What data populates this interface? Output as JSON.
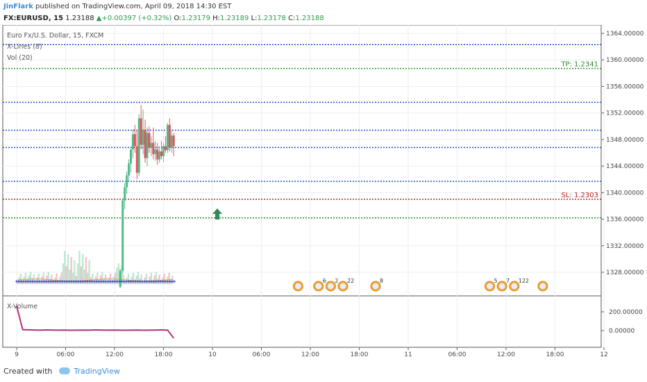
{
  "header": {
    "author": "JinFlark",
    "published": "published on TradingView.com, April 09, 2018 14:30 EST",
    "symbol": "FX:EURUSD, 15",
    "last": "1.23188",
    "change": "+0.00397 (+0.32%)",
    "o_label": "O:",
    "o_value": "1.23179",
    "h_label": "H:",
    "h_value": "1.23189",
    "l_label": "L:",
    "l_value": "1.23178",
    "c_label": "C:",
    "c_value": "1.23188"
  },
  "legend": {
    "title": "Euro Fx/U.S. Dollar, 15, FXCM",
    "indicator1": "X-Lines (8)",
    "indicator2": "Vol (20)",
    "lower_pane": "X-Volume"
  },
  "footer": {
    "created_with": "Created with",
    "brand": "TradingView"
  },
  "colors": {
    "up": "#53b987",
    "down": "#eb4d5c",
    "blue_line": "#1e4fd6",
    "green_line": "#2e8b2e",
    "red_line": "#b22222",
    "xvolume": "#b0307a",
    "tp": "#2e8b2e",
    "sl": "#b22222"
  },
  "chart_data": {
    "type": "candlestick",
    "price_axis": {
      "ticks": [
        "1364.00000",
        "1360.00000",
        "1356.00000",
        "1352.00000",
        "1348.00000",
        "1344.00000",
        "1340.00000",
        "1336.00000",
        "1332.00000",
        "1328.00000"
      ],
      "range": [
        1325.5,
        1364.8
      ]
    },
    "time_axis": {
      "ticks": [
        "9",
        "06:00",
        "12:00",
        "18:00",
        "10",
        "06:00",
        "12:00",
        "18:00",
        "11",
        "06:00",
        "12:00",
        "18:00",
        "12"
      ]
    },
    "hlines": [
      {
        "price": 1362.3,
        "color": "blue",
        "style": "dotted"
      },
      {
        "price": 1358.7,
        "color": "green",
        "style": "dotted",
        "label": "TP: 1.2341"
      },
      {
        "price": 1353.6,
        "color": "blue",
        "style": "dotted"
      },
      {
        "price": 1349.4,
        "color": "blue",
        "style": "dotted"
      },
      {
        "price": 1346.8,
        "color": "blue",
        "style": "dotted"
      },
      {
        "price": 1341.7,
        "color": "blue",
        "style": "dotted"
      },
      {
        "price": 1339.0,
        "color": "red",
        "style": "dotted",
        "label": "SL: 1.2303"
      },
      {
        "price": 1336.2,
        "color": "green",
        "style": "dotted"
      }
    ],
    "candles": [
      {
        "t": 12.7,
        "o": 1325.8,
        "h": 1328.5,
        "l": 1325.6,
        "c": 1328.2
      },
      {
        "t": 13.0,
        "o": 1328.2,
        "h": 1339.2,
        "l": 1327.8,
        "c": 1338.8
      },
      {
        "t": 13.25,
        "o": 1338.8,
        "h": 1341.5,
        "l": 1337.5,
        "c": 1340.8
      },
      {
        "t": 13.5,
        "o": 1340.8,
        "h": 1343.2,
        "l": 1339.8,
        "c": 1342.6
      },
      {
        "t": 13.75,
        "o": 1342.6,
        "h": 1345.0,
        "l": 1341.8,
        "c": 1344.4
      },
      {
        "t": 14.0,
        "o": 1344.4,
        "h": 1347.0,
        "l": 1343.0,
        "c": 1346.5
      },
      {
        "t": 14.25,
        "o": 1346.5,
        "h": 1349.5,
        "l": 1345.2,
        "c": 1348.8
      },
      {
        "t": 14.5,
        "o": 1348.8,
        "h": 1350.2,
        "l": 1346.0,
        "c": 1347.0
      },
      {
        "t": 14.75,
        "o": 1347.0,
        "h": 1349.5,
        "l": 1342.0,
        "c": 1343.0
      },
      {
        "t": 15.0,
        "o": 1343.0,
        "h": 1351.8,
        "l": 1342.5,
        "c": 1351.2
      },
      {
        "t": 15.25,
        "o": 1351.2,
        "h": 1353.2,
        "l": 1346.5,
        "c": 1347.2
      },
      {
        "t": 15.5,
        "o": 1347.2,
        "h": 1352.5,
        "l": 1345.8,
        "c": 1349.5
      },
      {
        "t": 15.75,
        "o": 1349.5,
        "h": 1351.0,
        "l": 1344.5,
        "c": 1345.2
      },
      {
        "t": 16.0,
        "o": 1345.2,
        "h": 1349.8,
        "l": 1344.0,
        "c": 1349.0
      },
      {
        "t": 16.25,
        "o": 1349.0,
        "h": 1350.0,
        "l": 1346.0,
        "c": 1346.8
      },
      {
        "t": 16.5,
        "o": 1346.8,
        "h": 1348.5,
        "l": 1345.5,
        "c": 1347.5
      },
      {
        "t": 16.75,
        "o": 1347.5,
        "h": 1349.8,
        "l": 1345.0,
        "c": 1345.8
      },
      {
        "t": 17.0,
        "o": 1345.8,
        "h": 1347.8,
        "l": 1344.8,
        "c": 1346.5
      },
      {
        "t": 17.25,
        "o": 1346.5,
        "h": 1347.5,
        "l": 1344.2,
        "c": 1345.0
      },
      {
        "t": 17.5,
        "o": 1345.0,
        "h": 1347.0,
        "l": 1344.5,
        "c": 1346.2
      },
      {
        "t": 17.75,
        "o": 1346.2,
        "h": 1347.8,
        "l": 1345.0,
        "c": 1345.5
      },
      {
        "t": 18.0,
        "o": 1345.5,
        "h": 1347.5,
        "l": 1344.6,
        "c": 1347.0
      },
      {
        "t": 18.25,
        "o": 1347.0,
        "h": 1348.5,
        "l": 1346.0,
        "c": 1346.4
      },
      {
        "t": 18.5,
        "o": 1346.4,
        "h": 1350.5,
        "l": 1346.0,
        "c": 1350.2
      },
      {
        "t": 18.75,
        "o": 1350.2,
        "h": 1351.2,
        "l": 1346.2,
        "c": 1346.8
      },
      {
        "t": 19.0,
        "o": 1346.8,
        "h": 1349.5,
        "l": 1346.0,
        "c": 1348.6
      },
      {
        "t": 19.25,
        "o": 1348.6,
        "h": 1349.0,
        "l": 1345.5,
        "c": 1347.0
      }
    ],
    "events": [
      {
        "t": 34.5
      },
      {
        "t": 37.0,
        "count": "6"
      },
      {
        "t": 38.5,
        "count": "2"
      },
      {
        "t": 40.0,
        "count": "22"
      },
      {
        "t": 44.0,
        "count": "8"
      },
      {
        "t": 58.0,
        "count": "5"
      },
      {
        "t": 59.5,
        "count": "7"
      },
      {
        "t": 61.0,
        "count": "122"
      },
      {
        "t": 64.5
      }
    ],
    "x_volume": {
      "axis_ticks": [
        "200.00000",
        "0.00000"
      ],
      "values": [
        260,
        10,
        8,
        6,
        5,
        7,
        6,
        5,
        6,
        4,
        5,
        6,
        5,
        7,
        6,
        5,
        6,
        5,
        4,
        5,
        6,
        4,
        5,
        6,
        7,
        5,
        -80
      ]
    }
  }
}
